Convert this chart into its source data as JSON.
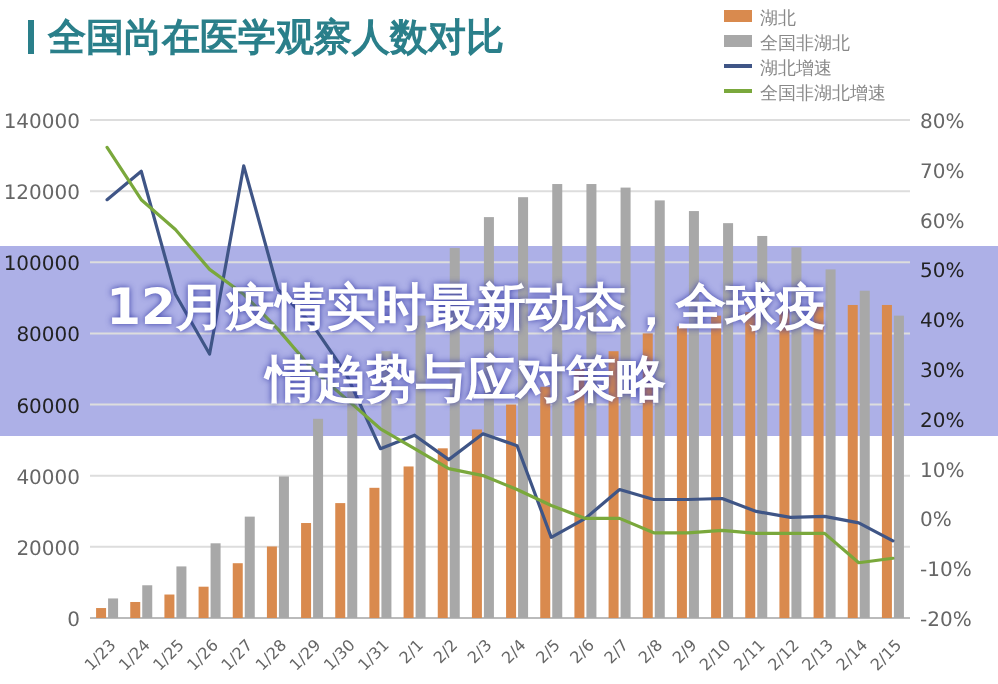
{
  "chart_data": {
    "type": "bar",
    "title": "全国尚在医学观察人数对比",
    "categories": [
      "1/23",
      "1/24",
      "1/25",
      "1/26",
      "1/27",
      "1/28",
      "1/29",
      "1/30",
      "1/31",
      "2/1",
      "2/2",
      "2/3",
      "2/4",
      "2/5",
      "2/6",
      "2/7",
      "2/8",
      "2/9",
      "2/10",
      "2/11",
      "2/12",
      "2/13",
      "2/14",
      "2/15"
    ],
    "series": [
      {
        "name": "湖北",
        "color": "#d98a4e",
        "values": [
          2800,
          4500,
          6600,
          8800,
          15400,
          20100,
          26700,
          32300,
          36600,
          42600,
          47700,
          53000,
          60000,
          65000,
          70000,
          75000,
          80000,
          82000,
          85000,
          86000,
          87000,
          88000,
          88000,
          88000
        ]
      },
      {
        "name": "全国非湖北",
        "color": "#a8a8a8",
        "values": [
          5500,
          9200,
          14500,
          21000,
          28500,
          39800,
          56000,
          65000,
          75000,
          85000,
          104000,
          112700,
          118300,
          122000,
          122000,
          121000,
          117400,
          114400,
          111000,
          107400,
          104200,
          98000,
          92000,
          85000
        ]
      },
      {
        "name": "湖北增速",
        "type": "line",
        "axis": "y2",
        "color": "#3f5586",
        "values": [
          64,
          69.7,
          45,
          33,
          70.8,
          46,
          39,
          29,
          14,
          16.7,
          11.8,
          17,
          14.6,
          -3.8,
          0,
          5.8,
          3.8,
          3.8,
          4,
          1.4,
          0.2,
          0.4,
          -0.9,
          -4.5
        ]
      },
      {
        "name": "全国非湖北增速",
        "type": "line",
        "axis": "y2",
        "color": "#7aa83c",
        "values": [
          74.5,
          64,
          58,
          50,
          45,
          38,
          30,
          24,
          18,
          14,
          10,
          8.6,
          5.8,
          2.6,
          0,
          0,
          -2.9,
          -2.9,
          -2.4,
          -3,
          -3,
          -3,
          -8.9,
          -8
        ]
      }
    ],
    "ylim": [
      0,
      140000
    ],
    "yticks": [
      0,
      20000,
      40000,
      60000,
      80000,
      100000,
      120000,
      140000
    ],
    "y2lim": [
      -20,
      80
    ],
    "y2ticks": [
      {
        "value": -20,
        "label": "-20%"
      },
      {
        "value": -10,
        "label": "-10%"
      },
      {
        "value": 0,
        "label": "0%"
      },
      {
        "value": 10,
        "label": "10%"
      },
      {
        "value": 20,
        "label": "20%"
      },
      {
        "value": 30,
        "label": "30%"
      },
      {
        "value": 40,
        "label": "40%"
      },
      {
        "value": 50,
        "label": "50%"
      },
      {
        "value": 60,
        "label": "60%"
      },
      {
        "value": 70,
        "label": "70%"
      },
      {
        "value": 80,
        "label": "80%"
      }
    ],
    "grid": "y",
    "legend": "top right",
    "annotations": [
      "12月疫情实时最新动态，全球疫情趋势与应对策略"
    ]
  }
}
